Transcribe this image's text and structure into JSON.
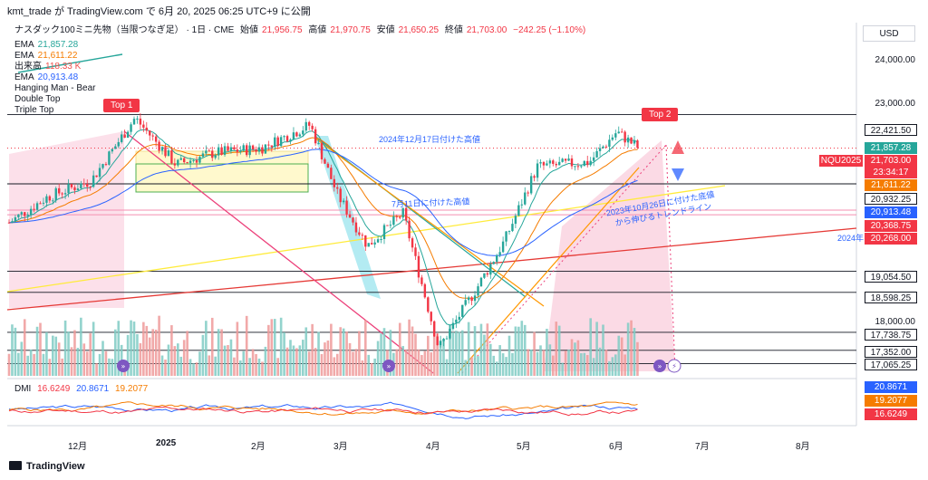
{
  "attribution": "kmt_trade が TradingView.com で 6月 20, 2025 06:25 UTC+9 に公開",
  "header": {
    "symbol": "ナスダック100ミニ先物（当限つなぎ足） · 1日 · CME",
    "open_label": "始値",
    "open": "21,956.75",
    "high_label": "高値",
    "high": "21,970.75",
    "low_label": "安値",
    "low": "21,650.25",
    "close_label": "終値",
    "close": "21,703.00",
    "change": "−242.25 (−1.10%)"
  },
  "legend": [
    {
      "name": "EMA",
      "value": "21,857.28",
      "color": "#26a69a"
    },
    {
      "name": "EMA",
      "value": "21,611.22",
      "color": "#f57c00"
    },
    {
      "name": "出来高",
      "value": "118.33 K",
      "color": "#ef5350"
    },
    {
      "name": "EMA",
      "value": "20,913.48",
      "color": "#2962ff"
    },
    {
      "name": "Hanging Man - Bear",
      "value": "",
      "color": "#131722"
    },
    {
      "name": "Double Top",
      "value": "",
      "color": "#131722"
    },
    {
      "name": "Triple Top",
      "value": "",
      "color": "#131722"
    }
  ],
  "currency": "USD",
  "labels": {
    "top1": "Top 1",
    "top2": "Top 2",
    "dec_high": "2024年12月17日付けた高値",
    "jul_high": "7月11日に付けた高値",
    "oct_trend_1": "2023年10月26日に付けた底値",
    "oct_trend_2": "から伸びるトレンドライン",
    "year_label": "2024年"
  },
  "y_axis_labels": [
    "24,000.00",
    "23,000.00",
    "18,000.00"
  ],
  "price_tags": [
    {
      "text": "22,421.50",
      "bg": "outline"
    },
    {
      "text": "21,857.28",
      "bg": "#26a69a"
    },
    {
      "text": "NQU2025",
      "bg": "#f23645"
    },
    {
      "text": "21,703.00",
      "bg": "#f23645"
    },
    {
      "text": "23:34:17",
      "bg": "#f23645"
    },
    {
      "text": "21,611.22",
      "bg": "#f57c00"
    },
    {
      "text": "20,932.25",
      "bg": "outline"
    },
    {
      "text": "20,913.48",
      "bg": "#2962ff"
    },
    {
      "text": "20,368.75",
      "bg": "#f23645"
    },
    {
      "text": "20,268.00",
      "bg": "#f23645"
    },
    {
      "text": "19,054.50",
      "bg": "outline"
    },
    {
      "text": "18,598.25",
      "bg": "outline"
    },
    {
      "text": "17,738.75",
      "bg": "outline"
    },
    {
      "text": "17,352.00",
      "bg": "outline"
    },
    {
      "text": "17,065.25",
      "bg": "outline"
    }
  ],
  "x_axis_labels": [
    "12月",
    "2025",
    "2月",
    "3月",
    "4月",
    "5月",
    "6月",
    "7月",
    "8月"
  ],
  "dmi": {
    "label": "DMI",
    "v1": "16.6249",
    "v2": "20.8671",
    "v3": "19.2077",
    "tags": [
      {
        "text": "20.8671",
        "bg": "#2962ff"
      },
      {
        "text": "19.2077",
        "bg": "#f57c00"
      },
      {
        "text": "16.6249",
        "bg": "#f23645"
      }
    ]
  },
  "footer": "TradingView",
  "chart_data": {
    "type": "candlestick",
    "title": "ナスダック100ミニ先物（当限つなぎ足） · 1日 · CME",
    "ylim": [
      16900,
      24400
    ],
    "horizontal_levels": [
      22421.5,
      20932.25,
      20368.75,
      20268.0,
      19054.5,
      18598.25,
      17738.75,
      17352.0,
      17065.25
    ],
    "ema_fast_last": 21857.28,
    "ema_mid_last": 21611.22,
    "ema_slow_last": 20913.48,
    "volume_last": "118.33 K",
    "close_path": [
      {
        "x": "2024-11-01",
        "y": 20100
      },
      {
        "x": "2024-11-15",
        "y": 20650
      },
      {
        "x": "2024-12-01",
        "y": 21000
      },
      {
        "x": "2024-12-17",
        "y": 22350
      },
      {
        "x": "2025-01-01",
        "y": 21350
      },
      {
        "x": "2025-01-15",
        "y": 21600
      },
      {
        "x": "2025-02-01",
        "y": 21700
      },
      {
        "x": "2025-02-19",
        "y": 22200
      },
      {
        "x": "2025-03-01",
        "y": 20700
      },
      {
        "x": "2025-03-12",
        "y": 19600
      },
      {
        "x": "2025-03-25",
        "y": 20300
      },
      {
        "x": "2025-04-07",
        "y": 17400
      },
      {
        "x": "2025-04-21",
        "y": 18700
      },
      {
        "x": "2025-05-01",
        "y": 19700
      },
      {
        "x": "2025-05-13",
        "y": 21300
      },
      {
        "x": "2025-06-01",
        "y": 21400
      },
      {
        "x": "2025-06-11",
        "y": 22050
      },
      {
        "x": "2025-06-19",
        "y": 21703
      }
    ],
    "dmi": {
      "adx": 16.6249,
      "plus_di": 20.8671,
      "minus_di": 19.2077
    }
  }
}
